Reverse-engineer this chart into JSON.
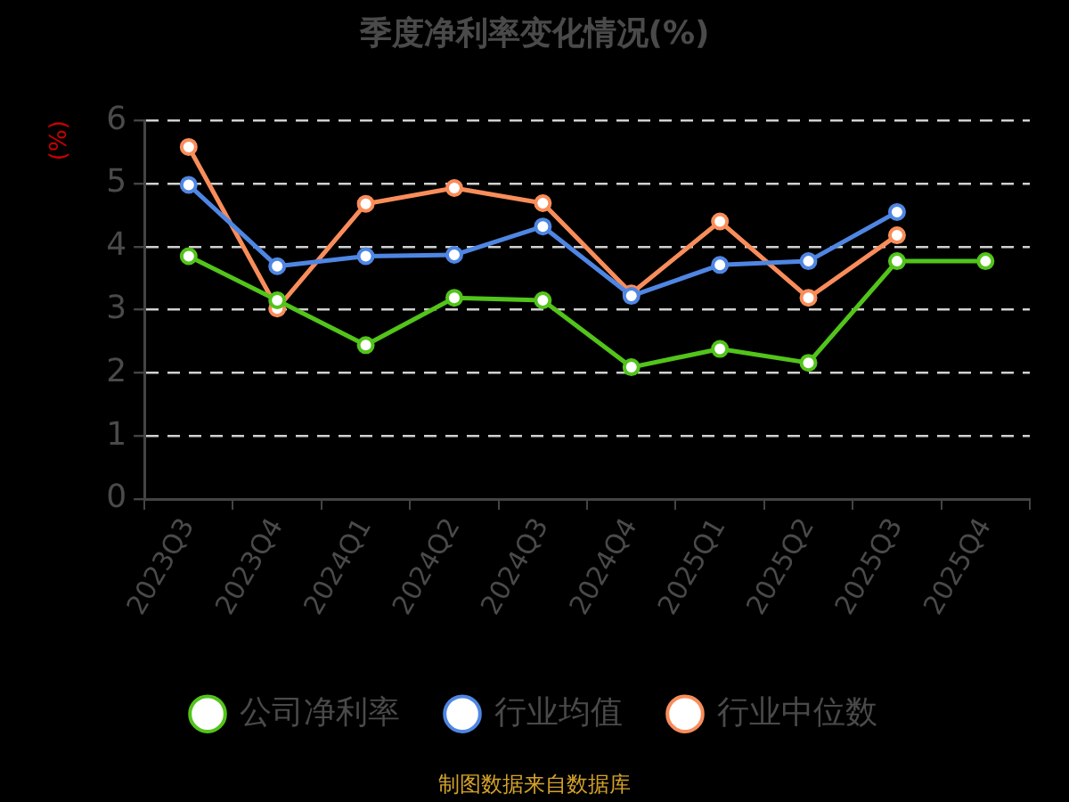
{
  "chart_data": {
    "type": "line",
    "title": "季度净利率变化情况(%)",
    "ylabel": "(%)",
    "categories": [
      "2023Q3",
      "2023Q4",
      "2024Q1",
      "2024Q2",
      "2024Q3",
      "2024Q4",
      "2025Q1",
      "2025Q2",
      "2025Q3",
      "2025Q4"
    ],
    "series": [
      {
        "name": "公司净利率",
        "color": "#52c41a",
        "values": [
          3.85,
          3.15,
          2.44,
          3.19,
          3.15,
          2.09,
          2.38,
          2.16,
          3.77,
          3.77
        ]
      },
      {
        "name": "行业均值",
        "color": "#4f86e3",
        "values": [
          4.98,
          3.69,
          3.85,
          3.87,
          4.32,
          3.22,
          3.71,
          3.77,
          4.55,
          null
        ]
      },
      {
        "name": "行业中位数",
        "color": "#f98d5a",
        "values": [
          5.58,
          3.02,
          4.68,
          4.93,
          4.69,
          3.26,
          4.4,
          3.19,
          4.18,
          null
        ]
      }
    ],
    "ylim": [
      0,
      6
    ],
    "yticks": [
      0,
      1,
      2,
      3,
      4,
      5,
      6
    ],
    "grid": "y",
    "legend": "bottom",
    "marker": "circle",
    "line_style": "solid",
    "annotations": [
      "制图数据来自数据库"
    ]
  }
}
